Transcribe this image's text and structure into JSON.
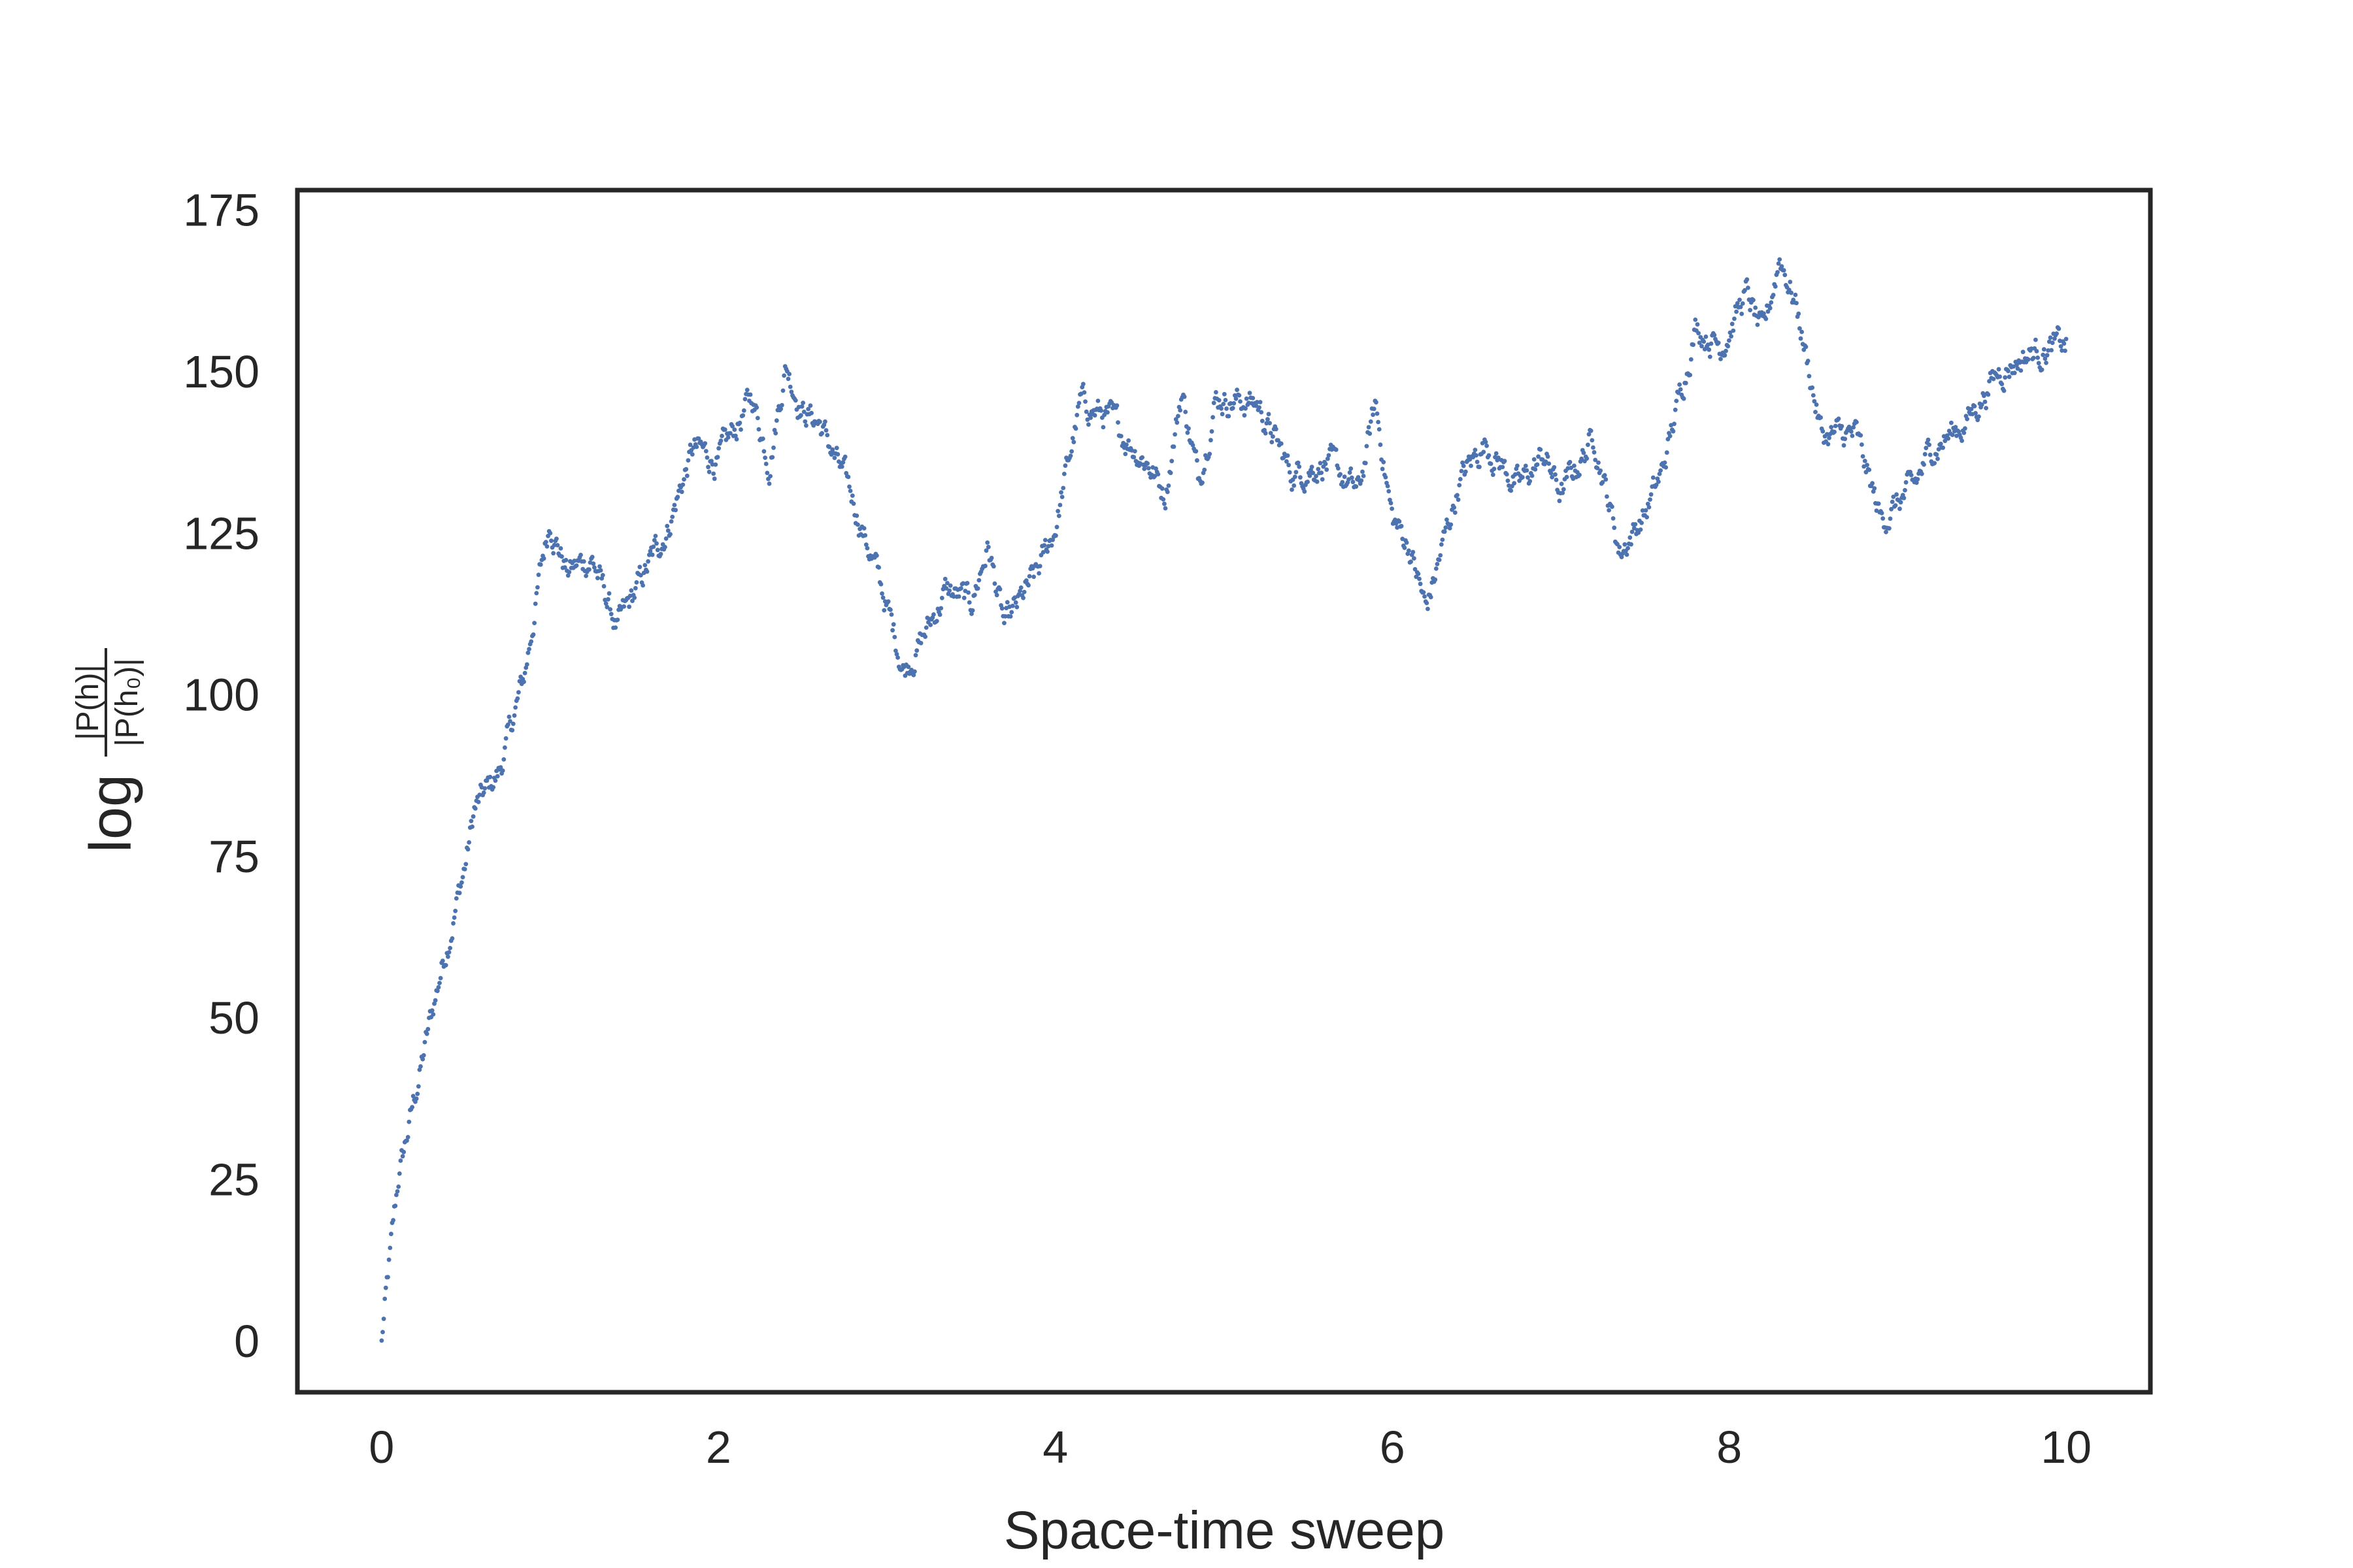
{
  "chart_data": {
    "type": "scatter",
    "title": "",
    "xlabel": "Space-time sweep",
    "ylabel": {
      "prefix": "log",
      "numerator": "|P(h)|",
      "denominator": "|P(h₀)|"
    },
    "xlim": [
      -0.5,
      10.5
    ],
    "ylim": [
      -8,
      178
    ],
    "xticks": [
      0,
      2,
      4,
      6,
      8,
      10
    ],
    "yticks": [
      0,
      25,
      50,
      75,
      100,
      125,
      150,
      175
    ],
    "grid": false,
    "legend": "none",
    "point_color": "#4c72b0",
    "axis_color": "#262626",
    "trace_keypoints": [
      [
        0.0,
        0
      ],
      [
        0.1,
        25
      ],
      [
        0.2,
        38
      ],
      [
        0.35,
        57
      ],
      [
        0.5,
        74
      ],
      [
        0.55,
        82
      ],
      [
        0.7,
        88
      ],
      [
        0.85,
        103
      ],
      [
        0.95,
        120
      ],
      [
        1.0,
        127
      ],
      [
        1.1,
        119
      ],
      [
        1.25,
        121
      ],
      [
        1.4,
        110
      ],
      [
        1.55,
        118
      ],
      [
        1.7,
        126
      ],
      [
        1.85,
        138
      ],
      [
        2.0,
        136
      ],
      [
        2.2,
        146
      ],
      [
        2.3,
        136
      ],
      [
        2.4,
        151
      ],
      [
        2.5,
        144
      ],
      [
        2.6,
        142
      ],
      [
        2.8,
        130
      ],
      [
        2.95,
        118
      ],
      [
        3.1,
        104
      ],
      [
        3.2,
        108
      ],
      [
        3.35,
        116
      ],
      [
        3.5,
        114
      ],
      [
        3.6,
        123
      ],
      [
        3.7,
        110
      ],
      [
        3.9,
        119
      ],
      [
        4.0,
        126
      ],
      [
        4.15,
        145
      ],
      [
        4.3,
        143
      ],
      [
        4.55,
        136
      ],
      [
        4.65,
        131
      ],
      [
        4.75,
        147
      ],
      [
        4.85,
        133
      ],
      [
        4.95,
        146
      ],
      [
        5.2,
        145
      ],
      [
        5.4,
        134
      ],
      [
        5.6,
        136
      ],
      [
        5.8,
        131
      ],
      [
        5.9,
        145
      ],
      [
        6.0,
        127
      ],
      [
        6.1,
        123
      ],
      [
        6.2,
        113
      ],
      [
        6.4,
        133
      ],
      [
        6.55,
        139
      ],
      [
        6.75,
        132
      ],
      [
        6.9,
        137
      ],
      [
        7.0,
        131
      ],
      [
        7.2,
        140
      ],
      [
        7.35,
        122
      ],
      [
        7.5,
        128
      ],
      [
        7.6,
        134
      ],
      [
        7.8,
        157
      ],
      [
        7.95,
        154
      ],
      [
        8.1,
        162
      ],
      [
        8.2,
        155
      ],
      [
        8.3,
        168
      ],
      [
        8.4,
        160
      ],
      [
        8.55,
        140
      ],
      [
        8.75,
        140
      ],
      [
        8.9,
        127
      ],
      [
        9.1,
        132
      ],
      [
        9.2,
        138
      ],
      [
        9.4,
        142
      ],
      [
        9.6,
        150
      ],
      [
        9.8,
        153
      ],
      [
        10.0,
        154
      ]
    ],
    "n_points": 1600
  }
}
